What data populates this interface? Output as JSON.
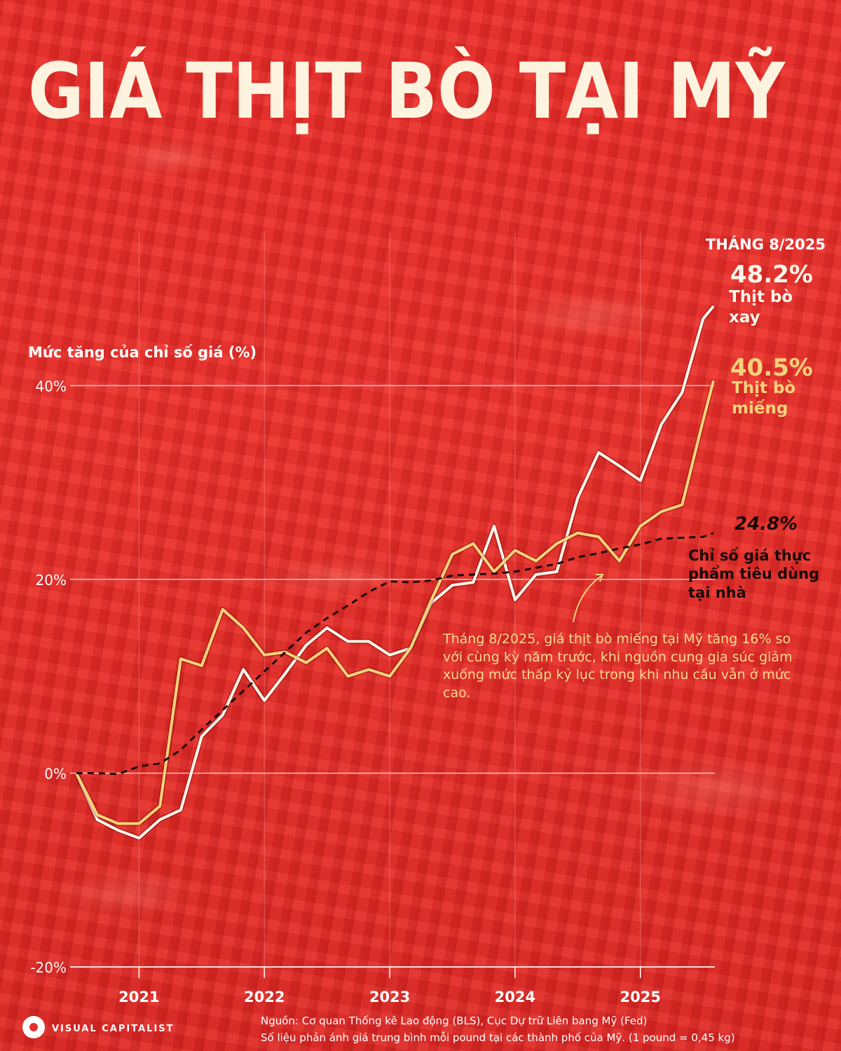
{
  "chart_data": {
    "type": "line",
    "title": "GIÁ THỊT BÒ TẠI MỸ",
    "date_label": "THÁNG 8/2025",
    "y_label": "Mức tăng của chỉ số giá (%)",
    "annotation": "Tháng 8/2025, giá thịt bò miếng tại Mỹ tăng 16% so với cùng kỳ năm trước, khi nguồn cung gia súc giảm xuống mức thấp kỷ lục trong khi nhu cầu vẫn ở mức cao.",
    "source": "Nguồn: Cơ quan Thống kê Lao động (BLS), Cục Dự trữ Liên bang Mỹ (Fed)",
    "note": "Số liệu phản ánh giá trung bình mỗi pound tại các thành phố của Mỹ. (1 pound = 0,45 kg)",
    "logo": "VISUAL CAPITALIST",
    "x": [
      2020.5,
      2020.667,
      2020.833,
      2021,
      2021.167,
      2021.333,
      2021.5,
      2021.667,
      2021.833,
      2022,
      2022.167,
      2022.333,
      2022.5,
      2022.667,
      2022.833,
      2023,
      2023.167,
      2023.333,
      2023.5,
      2023.667,
      2023.833,
      2024,
      2024.167,
      2024.333,
      2024.5,
      2024.667,
      2024.833,
      2025,
      2025.167,
      2025.333,
      2025.5,
      2025.583
    ],
    "xlim": [
      2020.45,
      2025.65
    ],
    "xticks": [
      2021,
      2022,
      2023,
      2024,
      2025
    ],
    "ylim": [
      -20,
      48.2
    ],
    "yticks": [
      {
        "value": -20,
        "label": "-20%"
      },
      {
        "value": 0,
        "label": "0%"
      },
      {
        "value": 20,
        "label": "20%"
      },
      {
        "value": 40,
        "label": "40%"
      }
    ],
    "grid": true,
    "series": [
      {
        "name": "Thịt bò xay",
        "color": "#fff6ea",
        "dash": false,
        "values": [
          0,
          -4.8,
          -5.9,
          -6.7,
          -4.8,
          -3.8,
          3.8,
          6,
          10.7,
          7.5,
          10.3,
          13.2,
          15,
          13.6,
          13.6,
          12.2,
          12.9,
          17.6,
          19.4,
          19.7,
          25.5,
          17.9,
          20.5,
          20.8,
          28.4,
          33.1,
          31.7,
          30.2,
          36,
          39.3,
          46.9,
          48.2
        ],
        "value_labels": [
          null,
          null,
          null,
          null,
          null,
          null,
          null,
          null,
          null,
          null,
          null,
          null,
          null,
          null,
          null,
          null,
          null,
          null,
          null,
          null,
          null,
          null,
          null,
          null,
          null,
          null,
          null,
          null,
          null,
          null,
          null,
          "48.2%"
        ]
      },
      {
        "name": "Thịt bò miếng",
        "color": "#f6d27a",
        "dash": false,
        "values": [
          0,
          -4.3,
          -5.2,
          -5.2,
          -3.4,
          11.8,
          11.1,
          16.9,
          15,
          12.2,
          12.5,
          11.4,
          12.9,
          10,
          10.7,
          10,
          12.9,
          17.9,
          22.6,
          23.7,
          20.8,
          23,
          21.9,
          23.7,
          24.8,
          24.4,
          21.9,
          25.5,
          27,
          27.7,
          36.4,
          40.5
        ],
        "value_labels": [
          null,
          null,
          null,
          null,
          null,
          null,
          null,
          null,
          null,
          null,
          null,
          null,
          null,
          null,
          null,
          null,
          null,
          null,
          null,
          null,
          null,
          null,
          null,
          null,
          null,
          null,
          null,
          null,
          null,
          null,
          null,
          "40.5%"
        ]
      },
      {
        "name": "Chỉ số giá thực phẩm tiêu dùng tại nhà",
        "color": "#1a0a08",
        "dash": true,
        "values": [
          0,
          0,
          -0.1,
          0.7,
          1,
          2.4,
          4.5,
          6.5,
          8.5,
          10.5,
          12.5,
          14.5,
          16,
          17.3,
          18.7,
          19.8,
          19.7,
          19.9,
          20.4,
          20.5,
          20.6,
          20.8,
          21.2,
          21.6,
          22.3,
          22.7,
          23.2,
          23.6,
          24.2,
          24.3,
          24.4,
          24.8
        ],
        "value_labels": [
          null,
          null,
          null,
          null,
          null,
          null,
          null,
          null,
          null,
          null,
          null,
          null,
          null,
          null,
          null,
          null,
          null,
          null,
          null,
          null,
          null,
          null,
          null,
          null,
          null,
          null,
          null,
          null,
          null,
          null,
          null,
          "24.8%"
        ]
      }
    ]
  }
}
